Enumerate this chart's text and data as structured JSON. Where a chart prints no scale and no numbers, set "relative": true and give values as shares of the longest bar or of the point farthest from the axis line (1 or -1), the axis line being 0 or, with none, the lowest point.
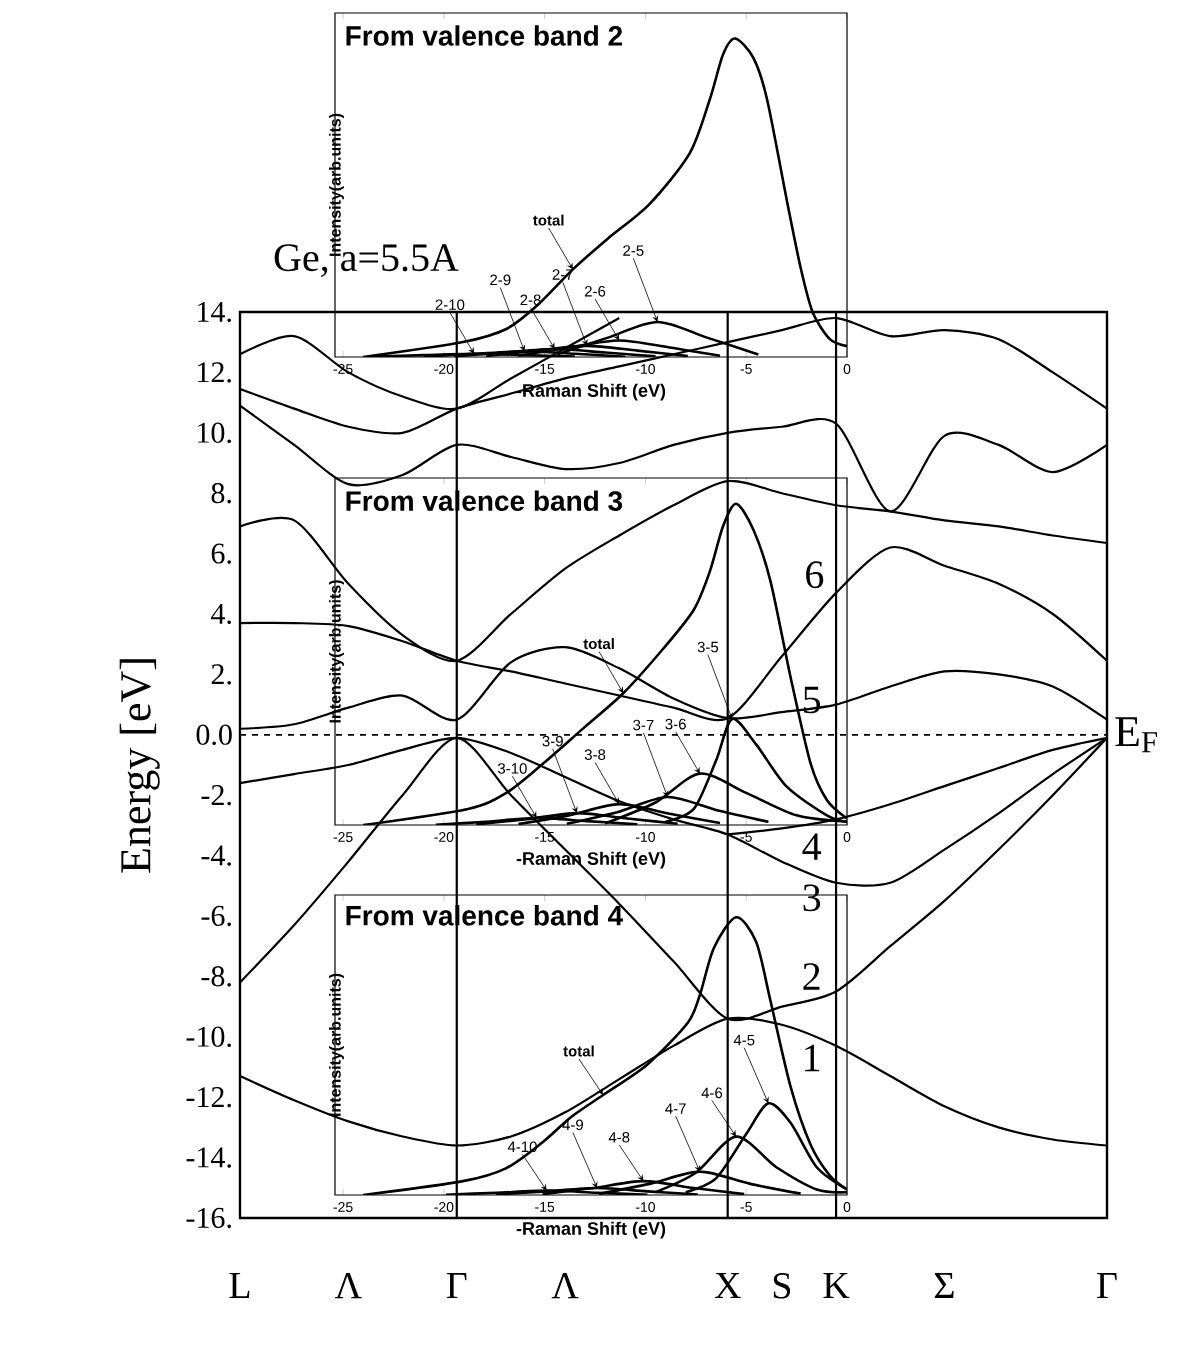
{
  "chart_data": [
    {
      "type": "line",
      "title": "Ge, a=5.5A",
      "ylabel": "Energy  [eV]",
      "color": "#000000",
      "categories": [
        "L",
        null,
        "Λ",
        null,
        "Γ",
        null,
        "Λ",
        null,
        null,
        "X",
        "S",
        "K",
        null,
        "Σ",
        null,
        null,
        "Γ"
      ],
      "ylim": [
        -16,
        14
      ],
      "yticks": [
        {
          "value": -16,
          "label": "-16."
        },
        {
          "value": -14,
          "label": "-14."
        },
        {
          "value": -12,
          "label": "-12."
        },
        {
          "value": -10,
          "label": "-10."
        },
        {
          "value": -8,
          "label": "-8."
        },
        {
          "value": -6,
          "label": "-6."
        },
        {
          "value": -4,
          "label": "-4."
        },
        {
          "value": -2,
          "label": "-2."
        },
        {
          "value": 0,
          "label": "0.0"
        },
        {
          "value": 2,
          "label": "2."
        },
        {
          "value": 4,
          "label": "4."
        },
        {
          "value": 6,
          "label": "6."
        },
        {
          "value": 8,
          "label": "8."
        },
        {
          "value": 10,
          "label": "10."
        },
        {
          "value": 12,
          "label": "12."
        },
        {
          "value": 14,
          "label": "14."
        }
      ],
      "ref_lines": [
        {
          "axis": "y",
          "value": 0,
          "label": "E$_{F}$",
          "line_style": "dashed"
        },
        {
          "axis": "x",
          "value": "Γ",
          "line_style": "solid"
        },
        {
          "axis": "x",
          "value": "X",
          "line_style": "solid"
        },
        {
          "axis": "x",
          "value": "K",
          "line_style": "solid"
        }
      ],
      "annotations": [
        "6",
        "5",
        "4",
        "3",
        "2",
        "1"
      ],
      "series": [
        {
          "values": [
            -11.3,
            -12.1,
            -12.8,
            -13.3,
            -13.6,
            -13.3,
            -12.5,
            -11.4,
            -10.3,
            -9.4,
            -9.6,
            -10.3,
            -11.3,
            -12.3,
            -13.0,
            -13.4,
            -13.6
          ]
        },
        {
          "values": [
            -8.2,
            -6.3,
            -4.2,
            -2.0,
            -0.1,
            -2.0,
            -3.8,
            -5.6,
            -7.5,
            -9.4,
            -9.0,
            -8.5,
            -7.0,
            -5.5,
            -3.8,
            -2.0,
            -0.1
          ]
        },
        {
          "values": [
            -1.6,
            -1.3,
            -1.0,
            -0.5,
            -0.1,
            -0.6,
            -1.4,
            -2.2,
            -2.8,
            -3.3,
            -4.2,
            -4.9,
            -4.9,
            -3.8,
            -2.6,
            -1.3,
            -0.1
          ]
        },
        {
          "values": [
            null,
            null,
            null,
            null,
            null,
            null,
            null,
            null,
            null,
            -3.3,
            -3.1,
            -2.8,
            -2.3,
            -1.7,
            -1.1,
            -0.5,
            -0.1
          ]
        },
        {
          "values": [
            0.2,
            0.35,
            0.9,
            1.3,
            0.5,
            2.4,
            2.9,
            2.2,
            1.2,
            0.55,
            0.75,
            1.0,
            1.6,
            2.1,
            2.0,
            1.6,
            0.5
          ]
        },
        {
          "values": [
            3.7,
            3.7,
            3.6,
            3.1,
            2.45,
            2.1,
            1.7,
            1.3,
            0.9,
            0.55,
            2.6,
            4.7,
            6.2,
            5.6,
            5.0,
            4.0,
            2.45
          ]
        },
        {
          "values": [
            6.9,
            7.1,
            5.0,
            3.3,
            2.45,
            4.0,
            5.5,
            6.6,
            7.6,
            8.4,
            8.0,
            7.6,
            7.4,
            7.1,
            6.9,
            6.6,
            6.35
          ]
        },
        {
          "values": [
            10.9,
            9.6,
            8.3,
            8.6,
            9.6,
            9.2,
            8.8,
            9.0,
            9.6,
            10.0,
            10.2,
            10.3,
            7.4,
            9.9,
            9.6,
            8.7,
            9.6
          ]
        },
        {
          "values": [
            11.45,
            10.8,
            10.2,
            10.0,
            10.8,
            11.3,
            11.8,
            12.2,
            12.6,
            13.0,
            13.4,
            13.8,
            13.2,
            13.4,
            13.1,
            12.0,
            10.8
          ]
        },
        {
          "values": [
            12.6,
            13.2,
            12.0,
            11.2,
            10.8,
            11.8,
            12.8,
            13.8,
            null,
            null,
            null,
            null,
            null,
            null,
            null,
            null,
            null
          ]
        }
      ]
    },
    {
      "type": "line",
      "title": "From valence band 2",
      "xlabel": "-Raman Shift (eV)",
      "ylabel": "Intensity(arb.units)",
      "relative": true,
      "color": "#000000",
      "xlim": [
        -25.4,
        0
      ],
      "xticks": [
        -25,
        -20,
        -15,
        -10,
        -5,
        0
      ],
      "annotations": [
        {
          "text": "total",
          "x": -13.6,
          "y": 0.275
        },
        {
          "text": "2-5",
          "x": -9.4,
          "y": 0.11
        },
        {
          "text": "2-6",
          "x": -11.3,
          "y": 0.052
        },
        {
          "text": "2-7",
          "x": -12.9,
          "y": 0.035
        },
        {
          "text": "2-8",
          "x": -14.5,
          "y": 0.025
        },
        {
          "text": "2-9",
          "x": -16,
          "y": 0.018
        },
        {
          "text": "2-10",
          "x": -18.5,
          "y": 0.01
        }
      ],
      "series": [
        {
          "x": [
            -24,
            -19.05,
            -16.9,
            -15.4,
            -13.6,
            -11.9,
            -9.8,
            -7.8,
            -6.8,
            -6.15,
            -5.55,
            -4.65,
            -3.97,
            -2.98,
            -2.3,
            -1.7,
            -0.85,
            0
          ],
          "values": [
            0,
            0.047,
            0.088,
            0.16,
            0.275,
            0.37,
            0.48,
            0.64,
            0.81,
            0.95,
            1.0,
            0.94,
            0.81,
            0.49,
            0.28,
            0.14,
            0.056,
            0.034
          ]
        },
        {
          "x": [
            -14.4,
            -11.9,
            -9.4,
            -6.9,
            -4.4
          ],
          "values": [
            0.008,
            0.06,
            0.11,
            0.06,
            0.008
          ]
        },
        {
          "x": [
            -16.3,
            -13.8,
            -11.3,
            -8.8,
            -6.3
          ],
          "values": [
            0.004,
            0.03,
            0.052,
            0.03,
            0.004
          ]
        },
        {
          "x": [
            -17.9,
            -15.4,
            -12.9,
            -10.4,
            -7.9
          ],
          "values": [
            0.003,
            0.02,
            0.035,
            0.02,
            0.003
          ]
        },
        {
          "x": [
            -19.5,
            -17,
            -14.5,
            -12,
            -9.5
          ],
          "values": [
            0.002,
            0.014,
            0.025,
            0.014,
            0.002
          ]
        },
        {
          "x": [
            -21,
            -18.5,
            -16,
            -13.5,
            -11
          ],
          "values": [
            0.001,
            0.01,
            0.018,
            0.01,
            0.001
          ]
        },
        {
          "x": [
            -23.5,
            -21,
            -18.5,
            -16,
            -13.5
          ],
          "values": [
            0.001,
            0.006,
            0.01,
            0.006,
            0.001
          ]
        }
      ]
    },
    {
      "type": "line",
      "title": "From valence band 3",
      "xlabel": "-Raman Shift (eV)",
      "ylabel": "Intensity(arb.units)",
      "relative": true,
      "color": "#000000",
      "xlim": [
        -25.4,
        0
      ],
      "xticks": [
        -25,
        -20,
        -15,
        -10,
        -5,
        0
      ],
      "annotations": [
        {
          "text": "total",
          "x": -11.1,
          "y": 0.41
        },
        {
          "text": "3-5",
          "x": -5.7,
          "y": 0.33
        },
        {
          "text": "3-6",
          "x": -7.3,
          "y": 0.16
        },
        {
          "text": "3-7",
          "x": -8.9,
          "y": 0.087
        },
        {
          "text": "3-8",
          "x": -11.3,
          "y": 0.065
        },
        {
          "text": "3-9",
          "x": -13.4,
          "y": 0.037
        },
        {
          "text": "3-10",
          "x": -15.4,
          "y": 0.022
        }
      ],
      "series": [
        {
          "x": [
            -24,
            -18.8,
            -16.9,
            -15.1,
            -13.1,
            -11.1,
            -9.1,
            -7.6,
            -6.8,
            -6.15,
            -5.5,
            -4.65,
            -3.8,
            -2.8,
            -1.8,
            -1.0,
            0
          ],
          "values": [
            0,
            0.05,
            0.1,
            0.19,
            0.3,
            0.41,
            0.55,
            0.67,
            0.79,
            0.93,
            1.0,
            0.92,
            0.76,
            0.46,
            0.19,
            0.078,
            0.02
          ]
        },
        {
          "x": [
            -9,
            -7.6,
            -6.5,
            -5.7,
            -4.5,
            -3,
            -1,
            0
          ],
          "values": [
            0.01,
            0.05,
            0.2,
            0.33,
            0.25,
            0.12,
            0.03,
            0.01
          ]
        },
        {
          "x": [
            -12,
            -9.5,
            -7.3,
            -5,
            -2.5,
            0
          ],
          "values": [
            0.005,
            0.07,
            0.16,
            0.1,
            0.03,
            0.01
          ]
        },
        {
          "x": [
            -13.9,
            -11.4,
            -8.9,
            -6.4,
            -3.9
          ],
          "values": [
            0.004,
            0.04,
            0.087,
            0.045,
            0.01
          ]
        },
        {
          "x": [
            -16.3,
            -13.8,
            -11.3,
            -8.8,
            -6.3
          ],
          "values": [
            0.003,
            0.03,
            0.065,
            0.035,
            0.006
          ]
        },
        {
          "x": [
            -18.4,
            -15.9,
            -13.4,
            -10.9,
            -8.4
          ],
          "values": [
            0.002,
            0.018,
            0.037,
            0.02,
            0.004
          ]
        },
        {
          "x": [
            -20.4,
            -17.9,
            -15.4,
            -12.9,
            -10.4
          ],
          "values": [
            0.001,
            0.01,
            0.022,
            0.012,
            0.002
          ]
        }
      ]
    },
    {
      "type": "line",
      "title": "From valence band 4",
      "xlabel": "-Raman Shift (eV)",
      "ylabel": "Intensity(arb.units)",
      "relative": true,
      "color": "#000000",
      "xlim": [
        -25.4,
        0
      ],
      "xticks": [
        -25,
        -20,
        -15,
        -10,
        -5,
        0
      ],
      "annotations": [
        {
          "text": "total",
          "x": -12.1,
          "y": 0.36
        },
        {
          "text": "4-5",
          "x": -3.9,
          "y": 0.33
        },
        {
          "text": "4-6",
          "x": -5.5,
          "y": 0.21
        },
        {
          "text": "4-7",
          "x": -7.3,
          "y": 0.084
        },
        {
          "text": "4-8",
          "x": -10.1,
          "y": 0.05
        },
        {
          "text": "4-9",
          "x": -12.4,
          "y": 0.025
        },
        {
          "text": "4-10",
          "x": -14.9,
          "y": 0.016
        }
      ],
      "series": [
        {
          "x": [
            -24,
            -19.05,
            -16.9,
            -15.1,
            -13.7,
            -12.1,
            -9.9,
            -7.9,
            -7.3,
            -6.6,
            -5.5,
            -4.5,
            -3.8,
            -2.8,
            -1.8,
            -0.85,
            0
          ],
          "values": [
            0,
            0.05,
            0.097,
            0.19,
            0.28,
            0.36,
            0.47,
            0.62,
            0.72,
            0.89,
            1.0,
            0.91,
            0.7,
            0.39,
            0.18,
            0.07,
            0.02
          ]
        },
        {
          "x": [
            -8,
            -6.5,
            -5,
            -3.9,
            -2.8,
            -1.5,
            0
          ],
          "values": [
            0.01,
            0.06,
            0.22,
            0.33,
            0.26,
            0.1,
            0.02
          ]
        },
        {
          "x": [
            -9.5,
            -7.5,
            -5.5,
            -3.5,
            -1.5,
            0
          ],
          "values": [
            0.01,
            0.08,
            0.21,
            0.1,
            0.02,
            0.01
          ]
        },
        {
          "x": [
            -12.3,
            -9.8,
            -7.3,
            -4.8,
            -2.3
          ],
          "values": [
            0.004,
            0.04,
            0.084,
            0.04,
            0.005
          ]
        },
        {
          "x": [
            -15.1,
            -12.6,
            -10.1,
            -7.6,
            -5.1
          ],
          "values": [
            0.003,
            0.025,
            0.05,
            0.025,
            0.003
          ]
        },
        {
          "x": [
            -17.4,
            -14.9,
            -12.4,
            -9.9,
            -7.4
          ],
          "values": [
            0.002,
            0.013,
            0.025,
            0.013,
            0.002
          ]
        },
        {
          "x": [
            -19.9,
            -17.4,
            -14.9,
            -12.4,
            -9.9
          ],
          "values": [
            0.001,
            0.008,
            0.016,
            0.008,
            0.001
          ]
        }
      ]
    }
  ]
}
